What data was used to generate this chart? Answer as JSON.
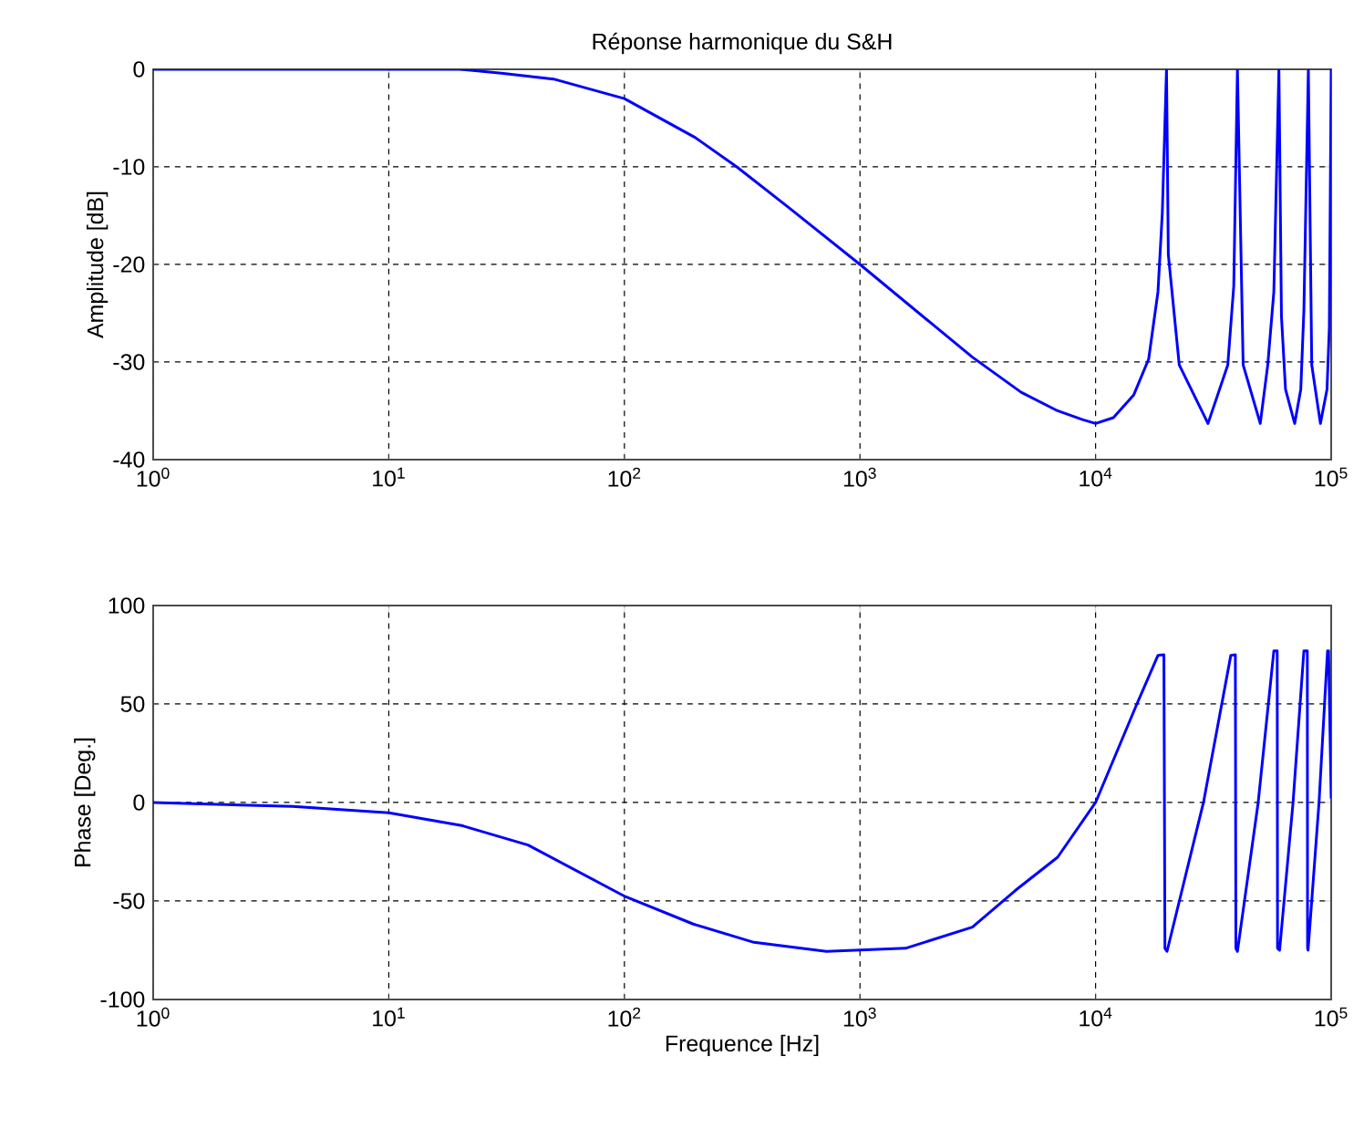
{
  "chart_data": [
    {
      "type": "line",
      "title": "Réponse harmonique du S&H",
      "ylabel": "Amplitude [dB]",
      "log": "x",
      "grid": true,
      "line_style": "solid",
      "xlim": [
        1,
        100000
      ],
      "ylim": [
        -40,
        0
      ],
      "xticks": [
        {
          "value": 1,
          "label": "10$^{0}$"
        },
        {
          "value": 10,
          "label": "10$^{1}$"
        },
        {
          "value": 100,
          "label": "10$^{2}$"
        },
        {
          "value": 1000,
          "label": "10$^{3}$"
        },
        {
          "value": 10000,
          "label": "10$^{4}$"
        },
        {
          "value": 100000,
          "label": "10$^{5}$"
        }
      ],
      "yticks": [
        -40,
        -30,
        -20,
        -10,
        0
      ],
      "x": [
        1,
        10,
        20,
        30,
        50,
        100,
        200,
        300,
        500,
        1000,
        2000,
        3000,
        4830,
        6900,
        8800,
        10000,
        11900,
        14500,
        16800,
        18400,
        19200,
        20000,
        20360,
        22650,
        30000,
        36400,
        38600,
        40000,
        42300,
        50000,
        53800,
        57100,
        60000,
        61500,
        64000,
        70000,
        74300,
        76600,
        80000,
        82700,
        90000,
        96000,
        98200,
        100000
      ],
      "series": [
        {
          "color": "#0000ff",
          "values": [
            0,
            0,
            0,
            -0.4,
            -1,
            -3,
            -7,
            -10,
            -14.2,
            -20,
            -26,
            -29.5,
            -33.1,
            -35,
            -35.9,
            -36.3,
            -35.7,
            -33.4,
            -29.7,
            -22.8,
            -14.7,
            0,
            -19,
            -30.3,
            -36.3,
            -30.3,
            -22.2,
            0,
            -30.3,
            -36.3,
            -30.3,
            -22.8,
            0,
            -25.3,
            -32.8,
            -36.3,
            -32.8,
            -24.7,
            0,
            -30.3,
            -36.3,
            -32.8,
            -26.5,
            0
          ]
        }
      ]
    },
    {
      "type": "line",
      "xlabel": "Frequence  [Hz]",
      "ylabel": "Phase [Deg.]",
      "log": "x",
      "grid": true,
      "line_style": "solid",
      "xlim": [
        1,
        100000
      ],
      "ylim": [
        -100,
        100
      ],
      "xticks": [
        {
          "value": 1,
          "label": "10$^{0}$"
        },
        {
          "value": 10,
          "label": "10$^{1}$"
        },
        {
          "value": 100,
          "label": "10$^{2}$"
        },
        {
          "value": 1000,
          "label": "10$^{3}$"
        },
        {
          "value": 10000,
          "label": "10$^{4}$"
        },
        {
          "value": 100000,
          "label": "10$^{5}$"
        }
      ],
      "yticks": [
        -100,
        -50,
        0,
        50,
        100
      ],
      "x": [
        1,
        3.9,
        10,
        20.4,
        39,
        101,
        196,
        355,
        720,
        1560,
        3000,
        4560,
        6900,
        10000,
        14900,
        18400,
        19500,
        19700,
        20100,
        28700,
        37500,
        39200,
        39400,
        40000,
        49000,
        57100,
        59000,
        59200,
        60400,
        68900,
        76600,
        79200,
        79400,
        79800,
        88800,
        96500,
        97500,
        100000
      ],
      "series": [
        {
          "color": "#0000ff",
          "values": [
            0,
            -2,
            -5.2,
            -11.7,
            -21.6,
            -47.8,
            -61.7,
            -71,
            -75.6,
            -74,
            -63.3,
            -44.7,
            -27.8,
            0,
            49.4,
            74.7,
            75,
            -74,
            -75.6,
            0,
            74.7,
            75,
            -74,
            -75.6,
            0,
            77,
            77,
            -74,
            -75,
            0,
            77,
            77,
            -74,
            -75,
            0,
            77,
            77,
            2
          ]
        }
      ]
    }
  ]
}
